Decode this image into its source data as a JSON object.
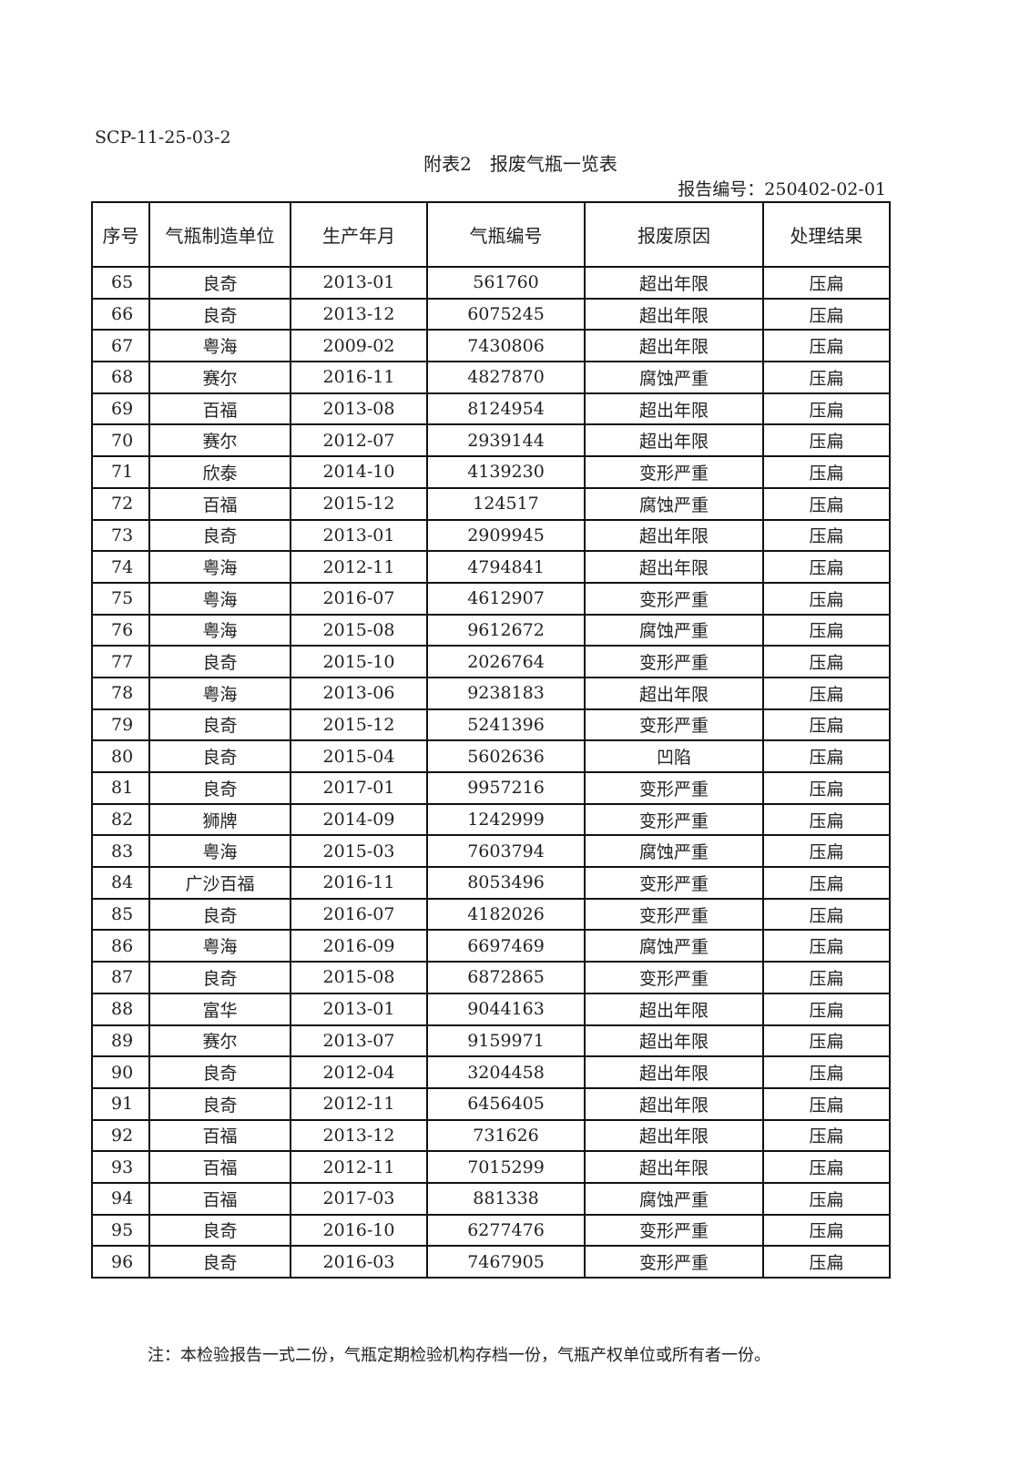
{
  "doc_code": "SCP-11-25-03-2",
  "title": "附表2　报废气瓶一览表",
  "report_no": "报告编号：250402-02-01",
  "table": {
    "headers": [
      "序号",
      "气瓶制造单位",
      "生产年月",
      "气瓶编号",
      "报废原因",
      "处理结果"
    ],
    "rows": [
      [
        "65",
        "良奇",
        "2013-01",
        "561760",
        "超出年限",
        "压扁"
      ],
      [
        "66",
        "良奇",
        "2013-12",
        "6075245",
        "超出年限",
        "压扁"
      ],
      [
        "67",
        "粤海",
        "2009-02",
        "7430806",
        "超出年限",
        "压扁"
      ],
      [
        "68",
        "赛尔",
        "2016-11",
        "4827870",
        "腐蚀严重",
        "压扁"
      ],
      [
        "69",
        "百福",
        "2013-08",
        "8124954",
        "超出年限",
        "压扁"
      ],
      [
        "70",
        "赛尔",
        "2012-07",
        "2939144",
        "超出年限",
        "压扁"
      ],
      [
        "71",
        "欣泰",
        "2014-10",
        "4139230",
        "变形严重",
        "压扁"
      ],
      [
        "72",
        "百福",
        "2015-12",
        "124517",
        "腐蚀严重",
        "压扁"
      ],
      [
        "73",
        "良奇",
        "2013-01",
        "2909945",
        "超出年限",
        "压扁"
      ],
      [
        "74",
        "粤海",
        "2012-11",
        "4794841",
        "超出年限",
        "压扁"
      ],
      [
        "75",
        "粤海",
        "2016-07",
        "4612907",
        "变形严重",
        "压扁"
      ],
      [
        "76",
        "粤海",
        "2015-08",
        "9612672",
        "腐蚀严重",
        "压扁"
      ],
      [
        "77",
        "良奇",
        "2015-10",
        "2026764",
        "变形严重",
        "压扁"
      ],
      [
        "78",
        "粤海",
        "2013-06",
        "9238183",
        "超出年限",
        "压扁"
      ],
      [
        "79",
        "良奇",
        "2015-12",
        "5241396",
        "变形严重",
        "压扁"
      ],
      [
        "80",
        "良奇",
        "2015-04",
        "5602636",
        "凹陷",
        "压扁"
      ],
      [
        "81",
        "良奇",
        "2017-01",
        "9957216",
        "变形严重",
        "压扁"
      ],
      [
        "82",
        "狮牌",
        "2014-09",
        "1242999",
        "变形严重",
        "压扁"
      ],
      [
        "83",
        "粤海",
        "2015-03",
        "7603794",
        "腐蚀严重",
        "压扁"
      ],
      [
        "84",
        "广沙百福",
        "2016-11",
        "8053496",
        "变形严重",
        "压扁"
      ],
      [
        "85",
        "良奇",
        "2016-07",
        "4182026",
        "变形严重",
        "压扁"
      ],
      [
        "86",
        "粤海",
        "2016-09",
        "6697469",
        "腐蚀严重",
        "压扁"
      ],
      [
        "87",
        "良奇",
        "2015-08",
        "6872865",
        "变形严重",
        "压扁"
      ],
      [
        "88",
        "富华",
        "2013-01",
        "9044163",
        "超出年限",
        "压扁"
      ],
      [
        "89",
        "赛尔",
        "2013-07",
        "9159971",
        "超出年限",
        "压扁"
      ],
      [
        "90",
        "良奇",
        "2012-04",
        "3204458",
        "超出年限",
        "压扁"
      ],
      [
        "91",
        "良奇",
        "2012-11",
        "6456405",
        "超出年限",
        "压扁"
      ],
      [
        "92",
        "百福",
        "2013-12",
        "731626",
        "超出年限",
        "压扁"
      ],
      [
        "93",
        "百福",
        "2012-11",
        "7015299",
        "超出年限",
        "压扁"
      ],
      [
        "94",
        "百福",
        "2017-03",
        "881338",
        "腐蚀严重",
        "压扁"
      ],
      [
        "95",
        "良奇",
        "2016-10",
        "6277476",
        "变形严重",
        "压扁"
      ],
      [
        "96",
        "良奇",
        "2016-03",
        "7467905",
        "变形严重",
        "压扁"
      ]
    ]
  },
  "note": "注：本检验报告一式二份，气瓶定期检验机构存档一份，气瓶产权单位或所有者一份。"
}
